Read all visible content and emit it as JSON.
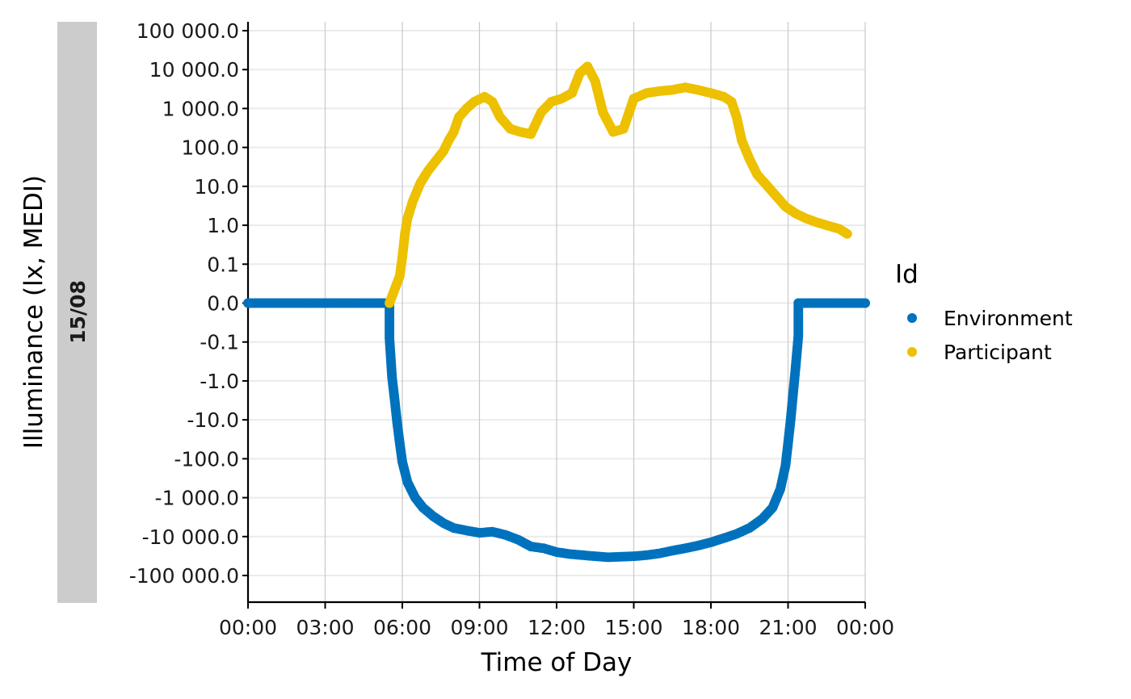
{
  "chart_data": {
    "type": "scatter",
    "title": "",
    "xlabel": "Time of Day",
    "ylabel": "Illuminance (lx, MEDI)",
    "facet_label": "15/08",
    "y_scale": "symlog (signed log10)",
    "x_unit": "hours",
    "xlim": [
      0,
      24
    ],
    "x_ticks": [
      0,
      3,
      6,
      9,
      12,
      15,
      18,
      21,
      24
    ],
    "x_tick_labels": [
      "00:00",
      "03:00",
      "06:00",
      "09:00",
      "12:00",
      "15:00",
      "18:00",
      "21:00",
      "00:00"
    ],
    "y_ticks": [
      100000,
      10000,
      1000,
      100,
      10,
      1,
      0.1,
      0,
      -0.1,
      -1,
      -10,
      -100,
      -1000,
      -10000,
      -100000
    ],
    "y_tick_labels": [
      "100 000.0",
      "10 000.0",
      "1 000.0",
      "100.0",
      "10.0",
      "1.0",
      "0.1",
      "0.0",
      "-0.1",
      "-1.0",
      "-10.0",
      "-100.0",
      "-1 000.0",
      "-10 000.0",
      "-100 000.0"
    ],
    "grid": true,
    "legend": {
      "title": "Id",
      "position": "right"
    },
    "series": [
      {
        "name": "Environment",
        "color": "#0072BD",
        "points": [
          [
            0,
            0
          ],
          [
            2,
            0
          ],
          [
            4,
            0
          ],
          [
            5.5,
            0
          ],
          [
            5.5,
            -0.08
          ],
          [
            5.55,
            -0.25
          ],
          [
            5.6,
            -0.8
          ],
          [
            5.7,
            -3
          ],
          [
            5.8,
            -12
          ],
          [
            5.9,
            -40
          ],
          [
            6.0,
            -120
          ],
          [
            6.2,
            -400
          ],
          [
            6.5,
            -1000
          ],
          [
            6.8,
            -1800
          ],
          [
            7.2,
            -3000
          ],
          [
            7.6,
            -4500
          ],
          [
            8.0,
            -6000
          ],
          [
            8.5,
            -7000
          ],
          [
            9.0,
            -8000
          ],
          [
            9.5,
            -7500
          ],
          [
            10.0,
            -9000
          ],
          [
            10.5,
            -12000
          ],
          [
            11.0,
            -18000
          ],
          [
            11.5,
            -20000
          ],
          [
            12.0,
            -25000
          ],
          [
            12.5,
            -28000
          ],
          [
            13.0,
            -30000
          ],
          [
            13.5,
            -32000
          ],
          [
            14.0,
            -34000
          ],
          [
            14.5,
            -33000
          ],
          [
            15.0,
            -32000
          ],
          [
            15.5,
            -30000
          ],
          [
            16.0,
            -27000
          ],
          [
            16.5,
            -23000
          ],
          [
            17.0,
            -20000
          ],
          [
            17.5,
            -17000
          ],
          [
            18.0,
            -14000
          ],
          [
            18.5,
            -11000
          ],
          [
            19.0,
            -8500
          ],
          [
            19.5,
            -6000
          ],
          [
            20.0,
            -3500
          ],
          [
            20.4,
            -1800
          ],
          [
            20.7,
            -600
          ],
          [
            20.9,
            -150
          ],
          [
            21.0,
            -40
          ],
          [
            21.1,
            -10
          ],
          [
            21.2,
            -2
          ],
          [
            21.3,
            -0.4
          ],
          [
            21.4,
            -0.07
          ],
          [
            21.4,
            0
          ],
          [
            22.5,
            0
          ],
          [
            24,
            0
          ]
        ]
      },
      {
        "name": "Participant",
        "color": "#EDC000",
        "points": [
          [
            5.5,
            0
          ],
          [
            5.9,
            0.05
          ],
          [
            6.0,
            0.15
          ],
          [
            6.1,
            0.6
          ],
          [
            6.2,
            1.5
          ],
          [
            6.4,
            4
          ],
          [
            6.7,
            12
          ],
          [
            7.0,
            25
          ],
          [
            7.3,
            45
          ],
          [
            7.6,
            80
          ],
          [
            7.8,
            150
          ],
          [
            8.0,
            250
          ],
          [
            8.2,
            600
          ],
          [
            8.5,
            1000
          ],
          [
            8.8,
            1500
          ],
          [
            9.2,
            2000
          ],
          [
            9.5,
            1500
          ],
          [
            9.8,
            600
          ],
          [
            10.2,
            300
          ],
          [
            10.6,
            250
          ],
          [
            11.0,
            220
          ],
          [
            11.4,
            800
          ],
          [
            11.8,
            1500
          ],
          [
            12.2,
            1800
          ],
          [
            12.6,
            2500
          ],
          [
            12.9,
            8000
          ],
          [
            13.2,
            12000
          ],
          [
            13.5,
            5000
          ],
          [
            13.8,
            800
          ],
          [
            14.2,
            250
          ],
          [
            14.6,
            300
          ],
          [
            15.0,
            1800
          ],
          [
            15.5,
            2500
          ],
          [
            16.0,
            2800
          ],
          [
            16.5,
            3000
          ],
          [
            17.0,
            3500
          ],
          [
            17.5,
            3000
          ],
          [
            18.0,
            2500
          ],
          [
            18.5,
            2000
          ],
          [
            18.8,
            1500
          ],
          [
            19.0,
            600
          ],
          [
            19.2,
            150
          ],
          [
            19.5,
            50
          ],
          [
            19.8,
            20
          ],
          [
            20.1,
            12
          ],
          [
            20.5,
            6
          ],
          [
            20.9,
            3
          ],
          [
            21.3,
            2
          ],
          [
            21.7,
            1.5
          ],
          [
            22.1,
            1.2
          ],
          [
            22.5,
            1
          ],
          [
            23.0,
            0.8
          ],
          [
            23.3,
            0.6
          ]
        ]
      }
    ]
  }
}
